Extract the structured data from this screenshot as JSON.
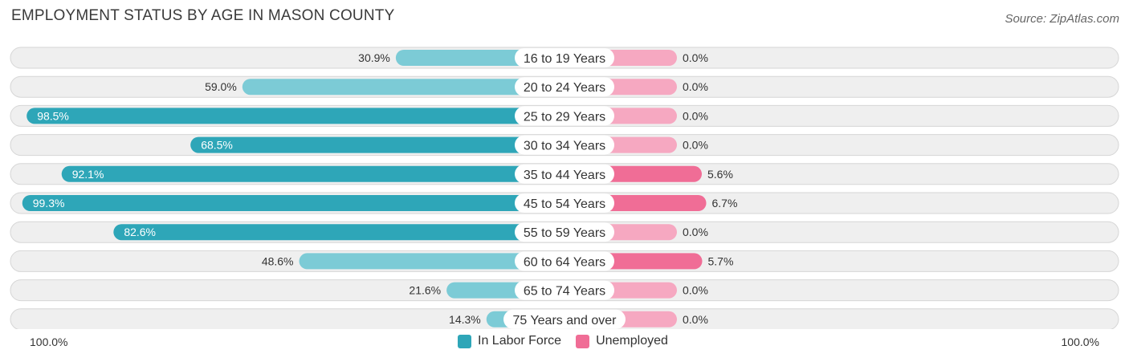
{
  "title": "EMPLOYMENT STATUS BY AGE IN MASON COUNTY",
  "source": "Source: ZipAtlas.com",
  "axis": {
    "left_label": "100.0%",
    "right_label": "100.0%"
  },
  "legend": [
    {
      "label": "In Labor Force",
      "color": "#2ea6b8"
    },
    {
      "label": "Unemployed",
      "color": "#f06d96"
    }
  ],
  "chart_data": {
    "type": "bar",
    "title": "EMPLOYMENT STATUS BY AGE IN MASON COUNTY",
    "orientation": "horizontal-diverging",
    "categories": [
      "16 to 19 Years",
      "20 to 24 Years",
      "25 to 29 Years",
      "30 to 34 Years",
      "35 to 44 Years",
      "45 to 54 Years",
      "55 to 59 Years",
      "60 to 64 Years",
      "65 to 74 Years",
      "75 Years and over"
    ],
    "series": [
      {
        "name": "In Labor Force",
        "values": [
          30.9,
          59.0,
          98.5,
          68.5,
          92.1,
          99.3,
          82.6,
          48.6,
          21.6,
          14.3
        ],
        "labels": [
          "30.9%",
          "59.0%",
          "98.5%",
          "68.5%",
          "92.1%",
          "99.3%",
          "82.6%",
          "48.6%",
          "21.6%",
          "14.3%"
        ]
      },
      {
        "name": "Unemployed",
        "values": [
          0.0,
          0.0,
          0.0,
          0.0,
          5.6,
          6.7,
          0.0,
          5.7,
          0.0,
          0.0
        ],
        "labels": [
          "0.0%",
          "0.0%",
          "0.0%",
          "0.0%",
          "5.6%",
          "6.7%",
          "0.0%",
          "5.7%",
          "0.0%",
          "0.0%"
        ]
      }
    ],
    "xlim_left": [
      100,
      0
    ],
    "xlim_right": [
      0,
      100
    ],
    "colors": {
      "labor_strong": "#2ea6b8",
      "labor_light": "#7ccbd6",
      "unemp_strong": "#f06d96",
      "unemp_light": "#f6a8c1"
    }
  }
}
